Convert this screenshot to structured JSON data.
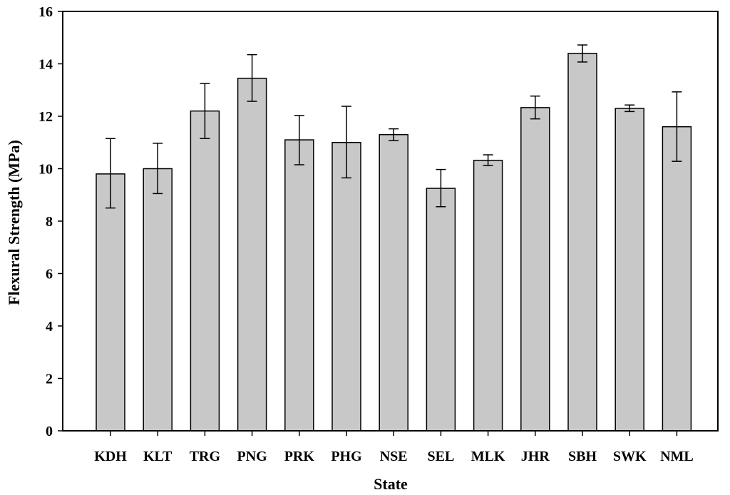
{
  "chart_data": {
    "type": "bar",
    "title": "",
    "xlabel": "State",
    "ylabel": "Flexural Strength (MPa)",
    "ylim": [
      0,
      16
    ],
    "yticks": [
      0,
      2,
      4,
      6,
      8,
      10,
      12,
      14,
      16
    ],
    "grid": false,
    "categories": [
      "KDH",
      "KLT",
      "TRG",
      "PNG",
      "PRK",
      "PHG",
      "NSE",
      "SEL",
      "MLK",
      "JHR",
      "SBH",
      "SWK",
      "NML"
    ],
    "values": [
      9.8,
      10.0,
      12.2,
      13.45,
      11.1,
      11.0,
      11.3,
      9.25,
      10.32,
      12.33,
      14.4,
      12.3,
      11.6
    ],
    "error_low": [
      8.5,
      9.05,
      11.15,
      12.57,
      10.15,
      9.65,
      11.07,
      8.55,
      10.12,
      11.9,
      14.07,
      12.18,
      10.28
    ],
    "error_high": [
      11.15,
      10.97,
      13.25,
      14.35,
      12.03,
      12.38,
      11.52,
      9.97,
      10.53,
      12.77,
      14.72,
      12.43,
      12.93
    ],
    "bar_color": "#c8c8c8",
    "bar_stroke": "#000000"
  }
}
